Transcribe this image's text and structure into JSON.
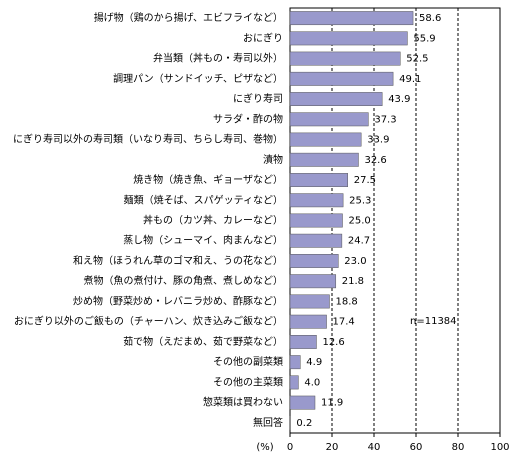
{
  "chart_data": {
    "type": "hbar",
    "categories": [
      "揚げ物（鶏のから揚げ、エビフライなど）",
      "おにぎり",
      "弁当類（丼もの・寿司以外）",
      "調理パン（サンドイッチ、ピザなど）",
      "にぎり寿司",
      "サラダ・酢の物",
      "にぎり寿司以外の寿司類（いなり寿司、ちらし寿司、巻物）",
      "漬物",
      "焼き物（焼き魚、ギョーザなど）",
      "麺類（焼そば、スパゲッティなど）",
      "丼もの（カツ丼、カレーなど）",
      "蒸し物（シューマイ、肉まんなど）",
      "和え物（ほうれん草のゴマ和え、うの花など）",
      "煮物（魚の煮付け、豚の角煮、煮しめなど）",
      "炒め物（野菜炒め・レバニラ炒め、酢豚など）",
      "おにぎり以外のご飯もの（チャーハン、炊き込みご飯など）",
      "茹で物（えだまめ、茹で野菜など）",
      "その他の副菜類",
      "その他の主菜類",
      "惣菜類は買わない",
      "無回答"
    ],
    "values": [
      58.6,
      55.9,
      52.5,
      49.1,
      43.9,
      37.3,
      33.9,
      32.6,
      27.5,
      25.3,
      25.0,
      24.7,
      23.0,
      21.8,
      18.8,
      17.4,
      12.6,
      4.9,
      4.0,
      11.9,
      0.2
    ],
    "value_labels": [
      "58.6",
      "55.9",
      "52.5",
      "49.1",
      "43.9",
      "37.3",
      "33.9",
      "32.6",
      "27.5",
      "25.3",
      "25.0",
      "24.7",
      "23.0",
      "21.8",
      "18.8",
      "17.4",
      "12.6",
      "4.9",
      "4.0",
      "11.9",
      "0.2"
    ],
    "color": "#9999cc",
    "xlim": [
      0,
      100
    ],
    "xticks": [
      0,
      20,
      40,
      60,
      80,
      100
    ],
    "x_unit": "(%)",
    "annotation": "n=11384",
    "grid": true
  }
}
